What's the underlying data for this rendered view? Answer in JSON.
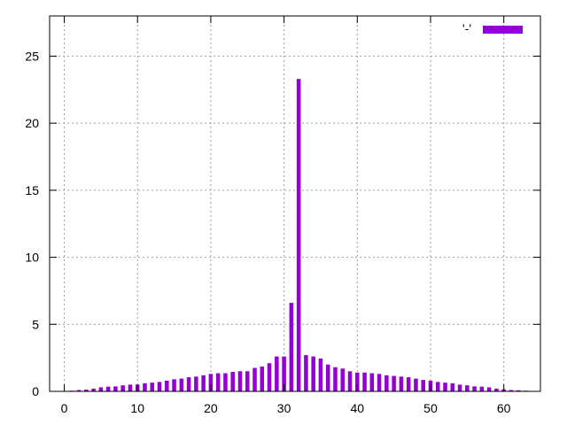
{
  "chart_data": {
    "type": "bar",
    "title": "",
    "xlabel": "",
    "ylabel": "",
    "xlim": [
      -2,
      65
    ],
    "ylim": [
      0,
      28
    ],
    "x_ticks": [
      0,
      10,
      20,
      30,
      40,
      50,
      60
    ],
    "y_ticks": [
      0,
      5,
      10,
      15,
      20,
      25
    ],
    "grid": true,
    "legend_position": "top-right",
    "series": [
      {
        "name": "'-'",
        "color": "#9400d3",
        "x": [
          0,
          1,
          2,
          3,
          4,
          5,
          6,
          7,
          8,
          9,
          10,
          11,
          12,
          13,
          14,
          15,
          16,
          17,
          18,
          19,
          20,
          21,
          22,
          23,
          24,
          25,
          26,
          27,
          28,
          29,
          30,
          31,
          32,
          33,
          34,
          35,
          36,
          37,
          38,
          39,
          40,
          41,
          42,
          43,
          44,
          45,
          46,
          47,
          48,
          49,
          50,
          51,
          52,
          53,
          54,
          55,
          56,
          57,
          58,
          59,
          60,
          61,
          62,
          63,
          64
        ],
        "values": [
          0.02,
          0.05,
          0.1,
          0.13,
          0.2,
          0.3,
          0.35,
          0.37,
          0.45,
          0.5,
          0.5,
          0.6,
          0.65,
          0.7,
          0.8,
          0.9,
          0.95,
          1.05,
          1.1,
          1.2,
          1.3,
          1.35,
          1.35,
          1.45,
          1.5,
          1.5,
          1.75,
          1.85,
          2.1,
          2.6,
          2.6,
          6.6,
          23.3,
          2.7,
          2.6,
          2.45,
          2.0,
          1.8,
          1.7,
          1.5,
          1.4,
          1.4,
          1.35,
          1.3,
          1.2,
          1.15,
          1.1,
          1.05,
          0.95,
          0.85,
          0.8,
          0.7,
          0.65,
          0.6,
          0.5,
          0.45,
          0.37,
          0.35,
          0.3,
          0.2,
          0.15,
          0.1,
          0.08,
          0.05,
          0.02
        ]
      }
    ]
  }
}
